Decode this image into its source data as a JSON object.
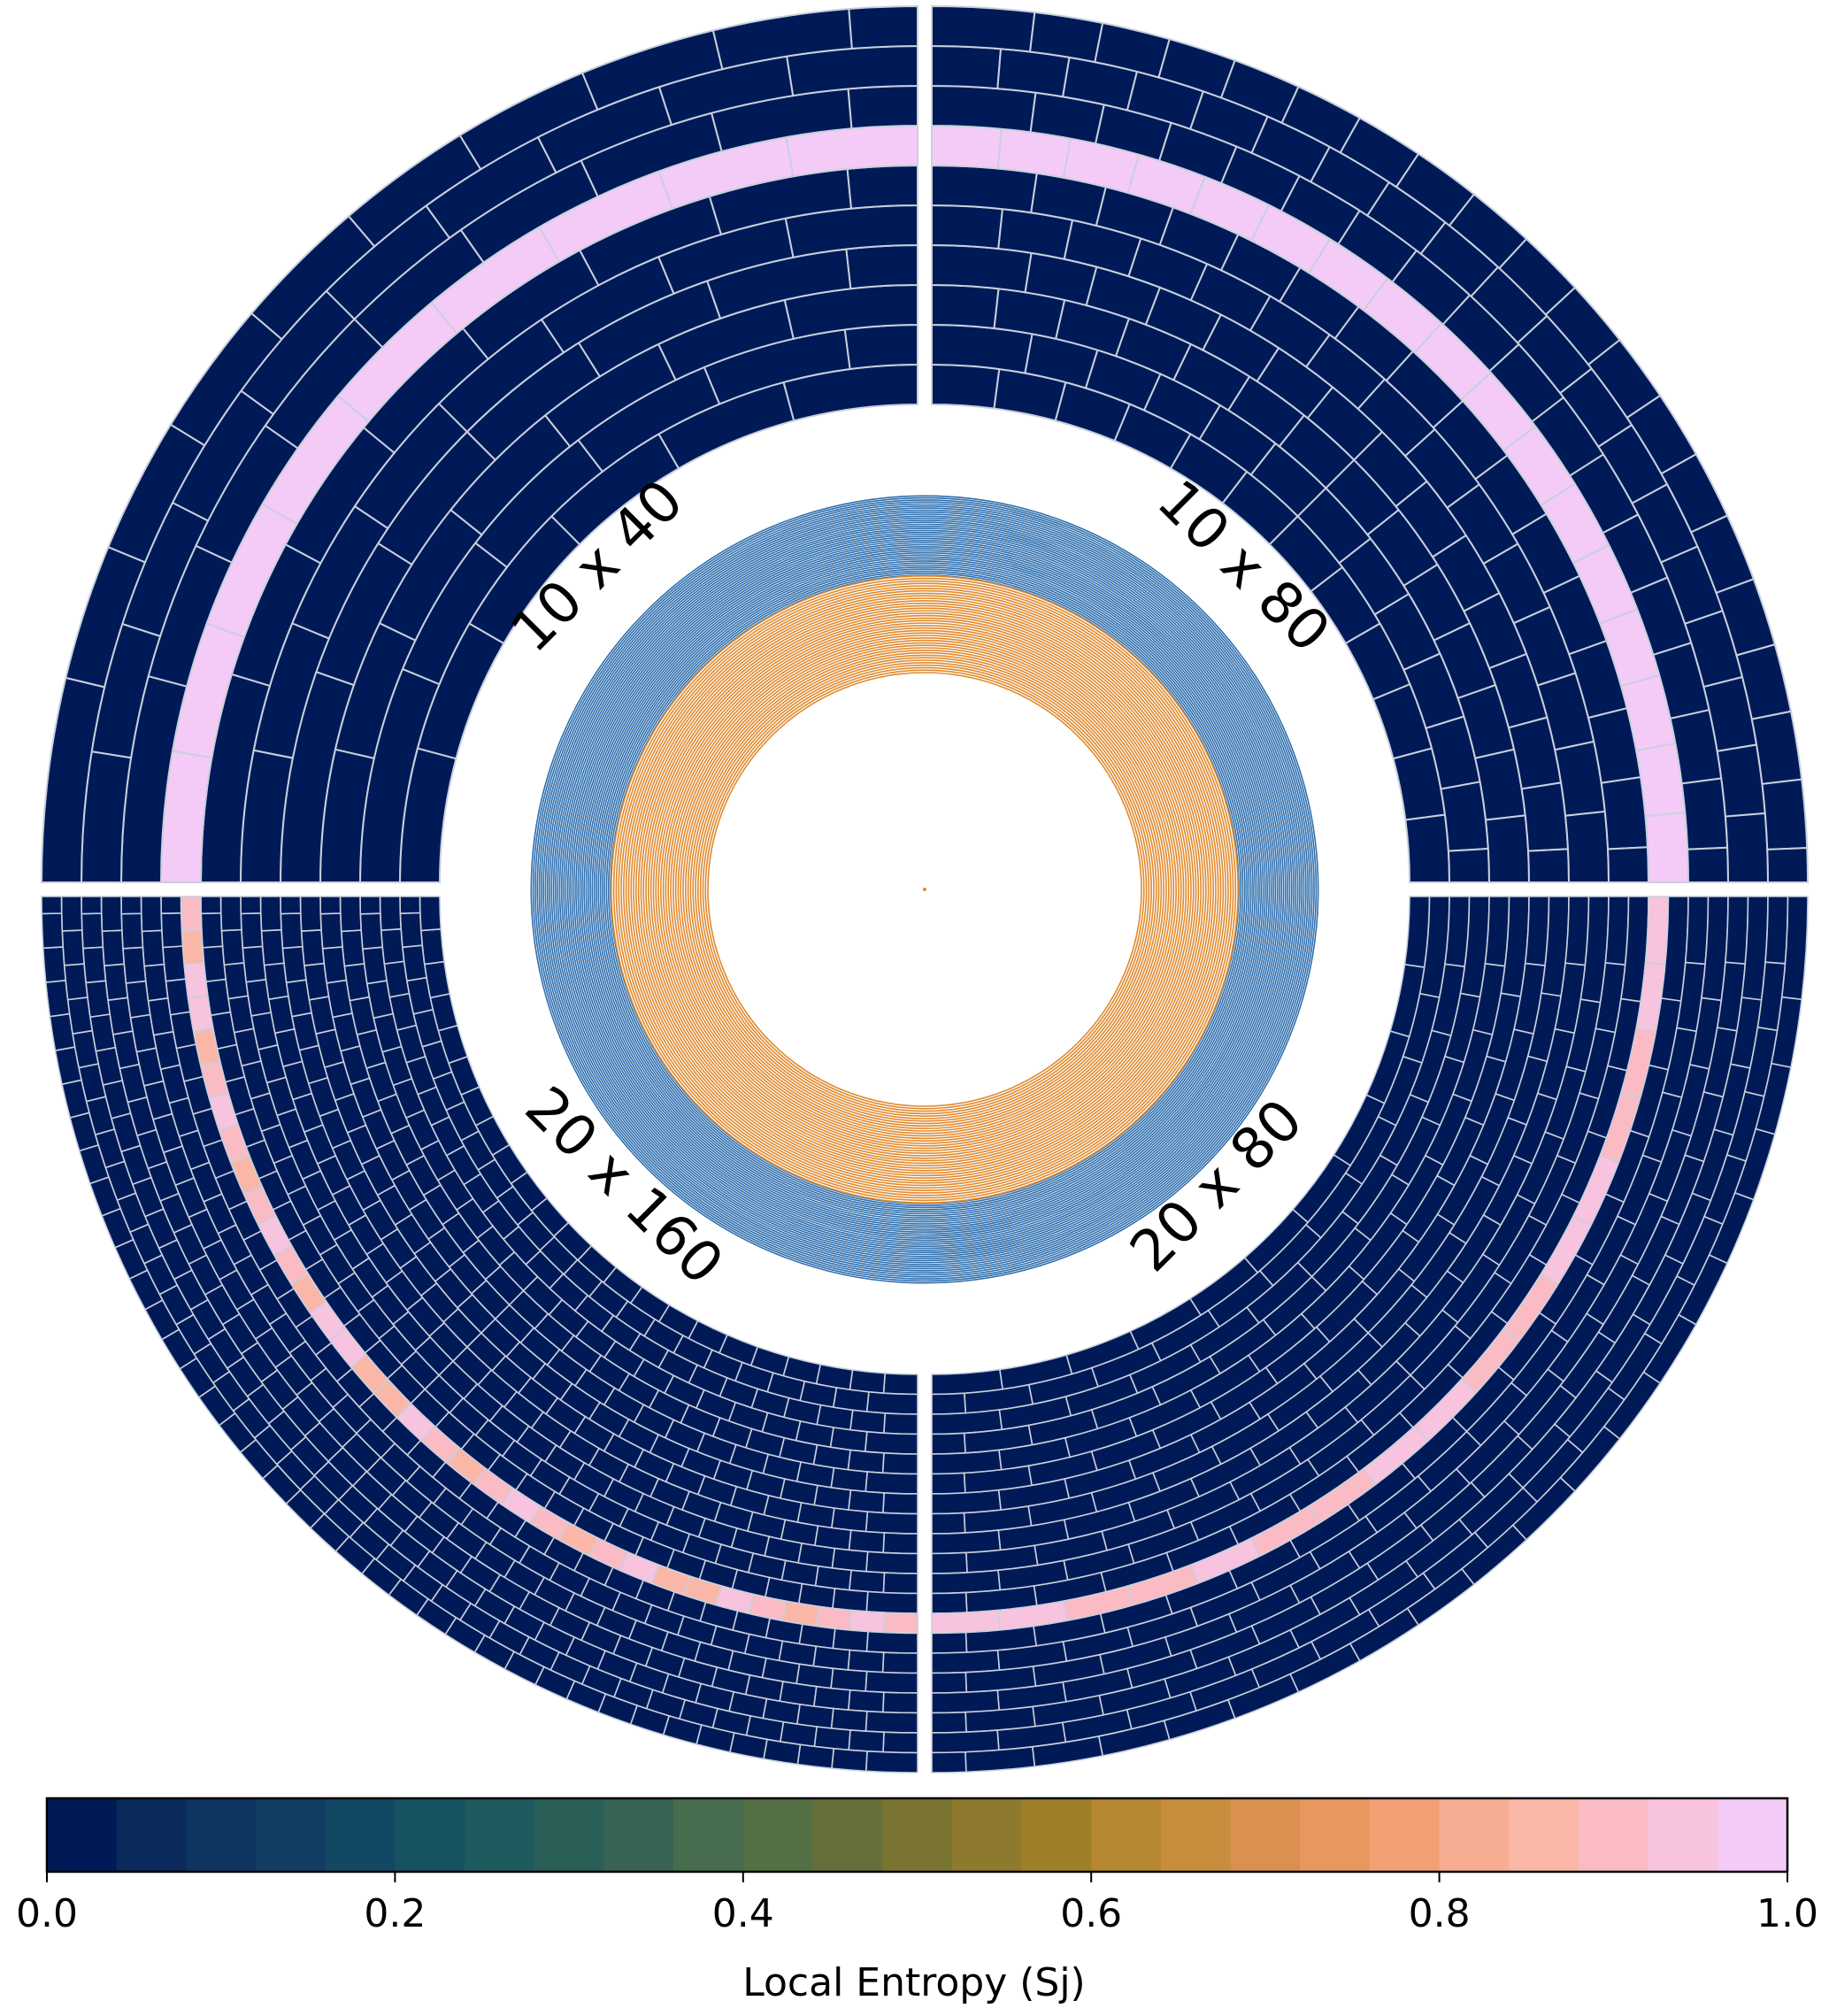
{
  "chart_data": {
    "type": "heatmap",
    "description_free": true,
    "panels": [
      {
        "label": "10 x 40",
        "quadrant": "top-left",
        "n_rings": 10,
        "n_cells_per_ring": 40,
        "high_entropy_ring": 6,
        "base_value": 0.0,
        "high_value": 1.0
      },
      {
        "label": "10 x 80",
        "quadrant": "top-right",
        "n_rings": 10,
        "n_cells_per_ring": 80,
        "high_entropy_ring": 6,
        "base_value": 0.0,
        "high_value": 1.0
      },
      {
        "label": "20 x 80",
        "quadrant": "bottom-right",
        "n_rings": 20,
        "n_cells_per_ring": 80,
        "high_entropy_ring": 12,
        "base_value": 0.0,
        "high_value": 0.92
      },
      {
        "label": "20 x 160",
        "quadrant": "bottom-left",
        "n_rings": 20,
        "n_cells_per_ring": 160,
        "high_entropy_ring": 12,
        "base_value": 0.0,
        "high_value": 0.9
      }
    ],
    "center_spiral": {
      "outer_series_color": "#2f6fae",
      "inner_series_color": "#e08a2e"
    },
    "colorbar": {
      "label": "Local Entropy (Sj)",
      "range": [
        0.0,
        1.0
      ],
      "ticks": [
        "0.0",
        "0.2",
        "0.4",
        "0.6",
        "0.8",
        "1.0"
      ],
      "n_bins": 25,
      "colors": [
        "#001a57",
        "#0b2a5c",
        "#0e3560",
        "#113d62",
        "#134865",
        "#165362",
        "#1f5a5e",
        "#2a5f58",
        "#386553",
        "#476d4e",
        "#546f43",
        "#666f3a",
        "#7a7433",
        "#8e7a2e",
        "#a07f2a",
        "#b48730",
        "#c98d3e",
        "#da9150",
        "#e8975f",
        "#f2a074",
        "#f7ad92",
        "#fab7a8",
        "#fbbbc4",
        "#f8c3df",
        "#f4cbf7"
      ]
    }
  }
}
